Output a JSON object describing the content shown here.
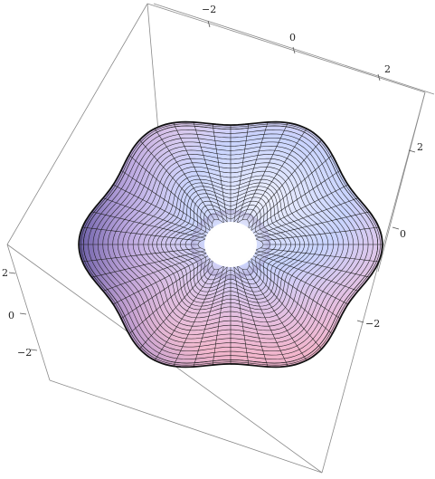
{
  "chart_data": {
    "type": "surface3d",
    "surface": "torus with six-fold sinusoidal outer lobes",
    "mesh": {
      "u_lines": 48,
      "v_lines": 24
    },
    "axes": {
      "top_edge": {
        "ticks": [
          -2,
          0,
          2
        ],
        "labels": [
          "−2",
          "0",
          "2"
        ]
      },
      "right_edge": {
        "ticks": [
          2,
          0,
          -2
        ],
        "labels": [
          "2",
          "0",
          "−2"
        ]
      },
      "left_edge": {
        "ticks": [
          2,
          0,
          -2
        ],
        "labels": [
          "2",
          "0",
          "−2"
        ]
      }
    },
    "colors": {
      "light": "#c9d4ff",
      "pink": "#f2b6cc",
      "blue": "#7f86e0",
      "dark_blue": "#3b3f99",
      "box": "#8a8a8a"
    }
  }
}
